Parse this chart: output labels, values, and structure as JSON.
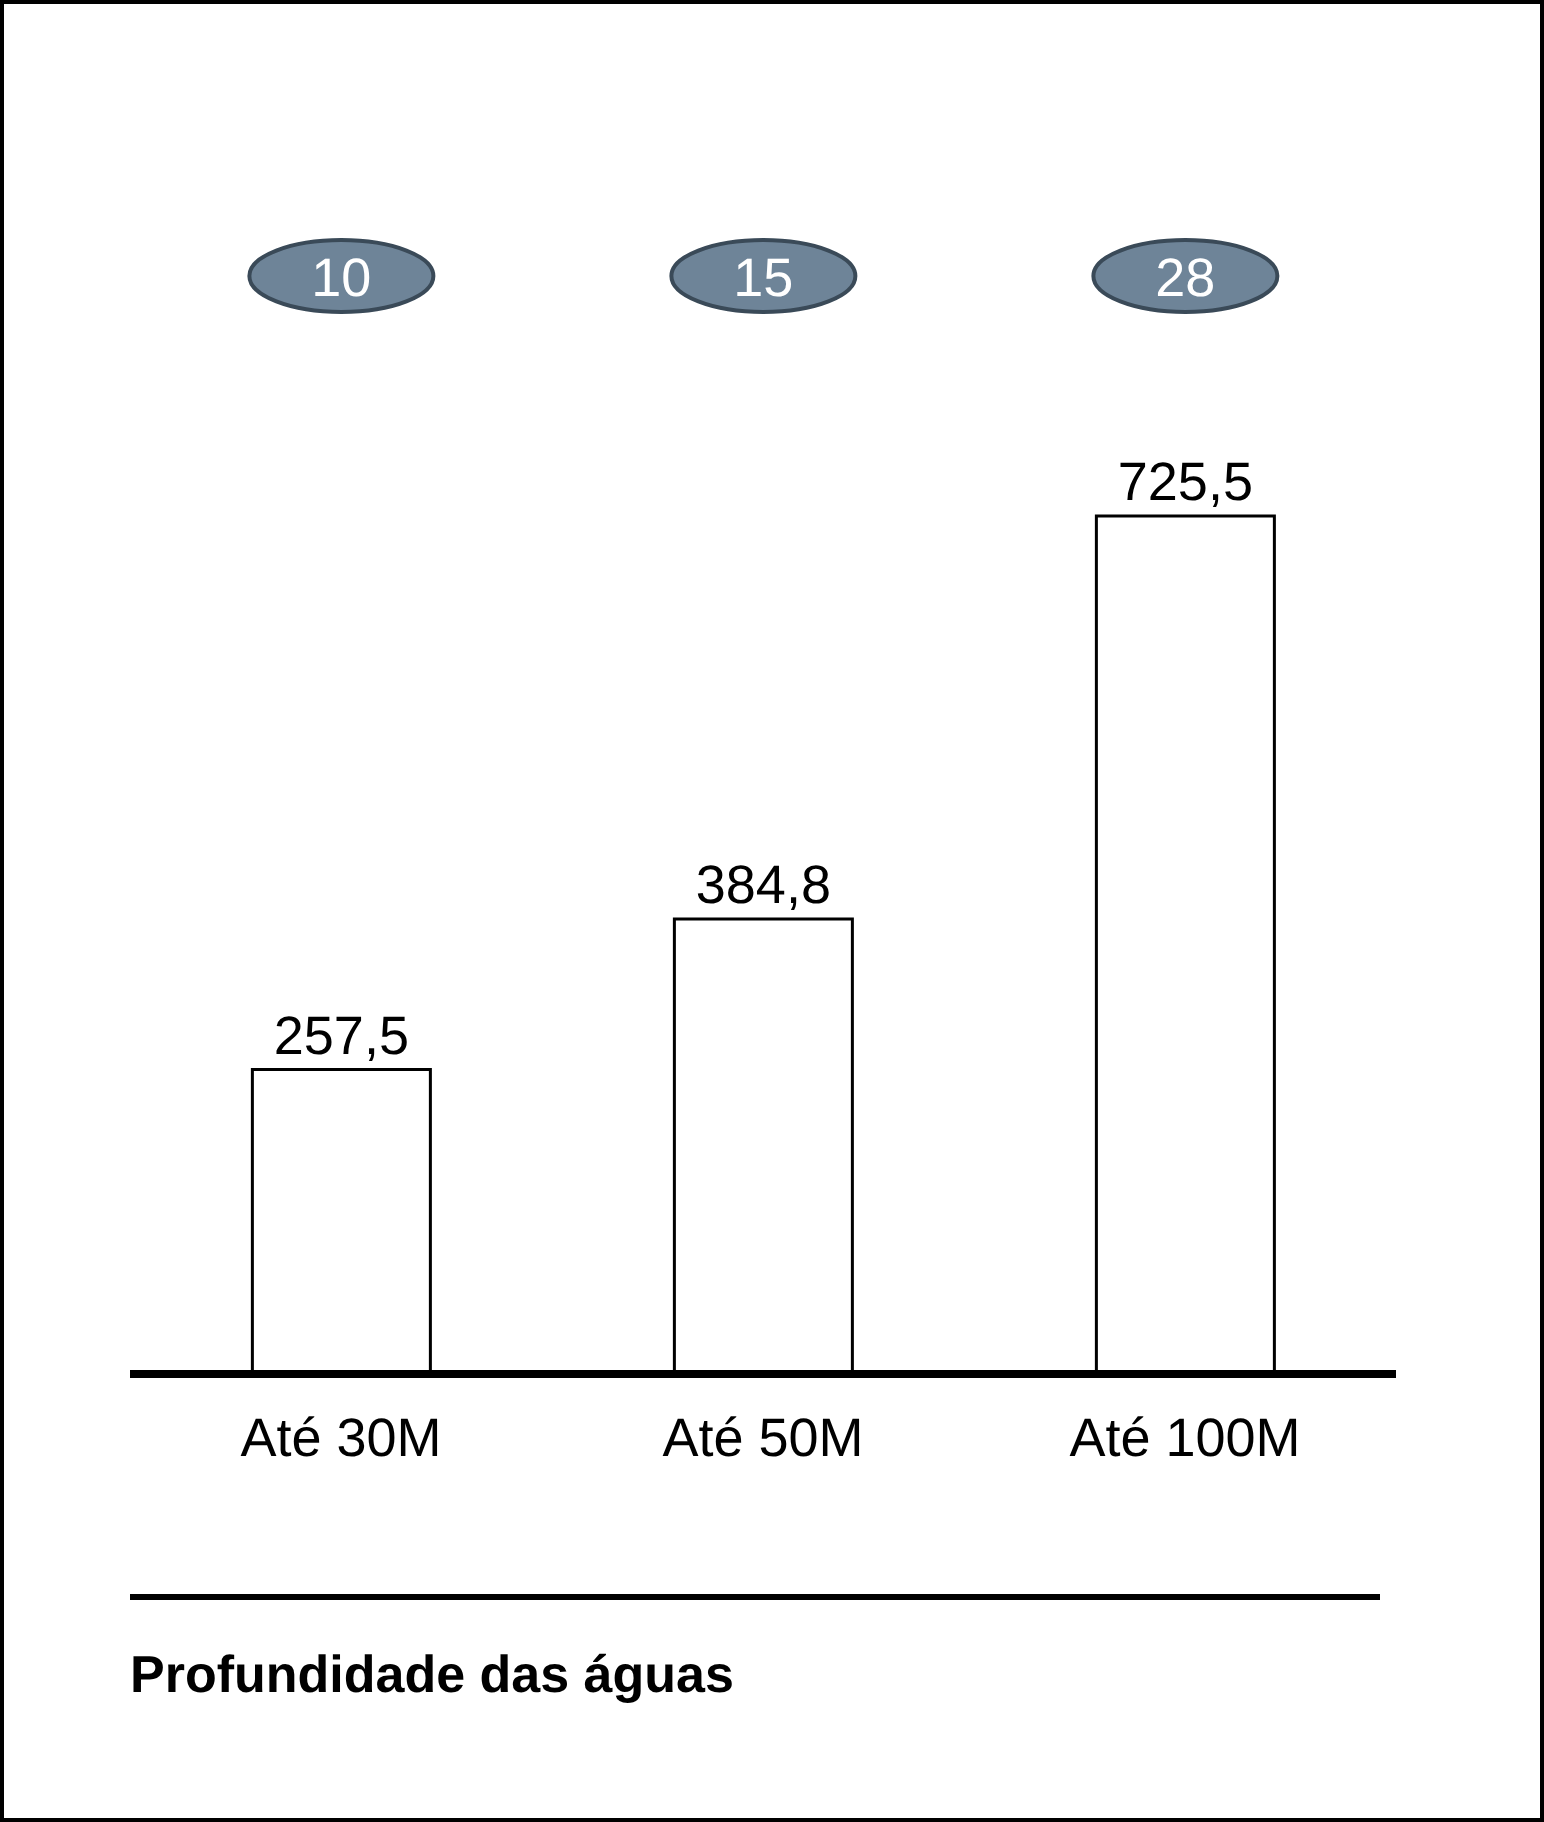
{
  "chart_data": {
    "type": "bar",
    "title": "Profundidade das águas",
    "categories": [
      "Até 30M",
      "Até 50M",
      "Até 100M"
    ],
    "values": [
      257.5,
      384.8,
      725.5
    ],
    "color": "#ffffff",
    "value_labels": [
      "257,5",
      "384,8",
      "725,5"
    ],
    "annotations": [
      "10",
      "15",
      "28"
    ]
  }
}
